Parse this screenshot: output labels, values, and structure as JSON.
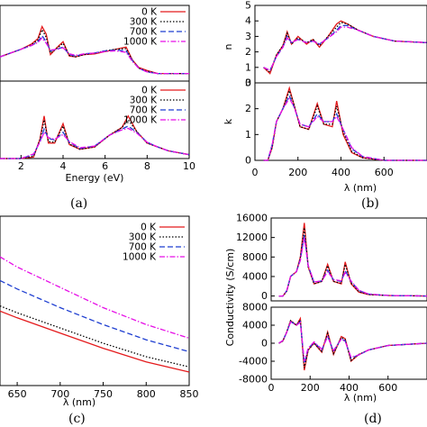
{
  "colors": {
    "0 K": "#e41a1c",
    "300 K": "#000000",
    "700 K": "#1f3fd1",
    "1000 K": "#e60fe6"
  },
  "chart_data": [
    {
      "id": "a",
      "type": "line",
      "panel_label": "(a)",
      "xlabel": "Energy (eV)",
      "xlim": [
        1,
        10
      ],
      "x_ticks": [
        "2",
        "4",
        "6",
        "8",
        "10"
      ],
      "subplots": [
        {
          "ylabel": "",
          "ylim": [
            0,
            1
          ],
          "legend": [
            "0 K",
            "300 K",
            "700 K",
            "1000 K"
          ],
          "x": [
            1.0,
            1.5,
            2.0,
            2.5,
            2.8,
            3.0,
            3.2,
            3.4,
            3.7,
            4.0,
            4.3,
            4.6,
            5.0,
            5.5,
            6.0,
            6.5,
            7.0,
            7.3,
            7.6,
            8.0,
            8.5,
            9.0,
            10.0
          ],
          "series": [
            {
              "name": "0 K",
              "values": [
                0.32,
                0.37,
                0.42,
                0.49,
                0.56,
                0.72,
                0.62,
                0.35,
                0.44,
                0.52,
                0.33,
                0.32,
                0.35,
                0.36,
                0.39,
                0.42,
                0.45,
                0.28,
                0.18,
                0.14,
                0.1,
                0.1,
                0.1
              ]
            },
            {
              "name": "300 K",
              "values": [
                0.32,
                0.37,
                0.42,
                0.48,
                0.54,
                0.68,
                0.58,
                0.37,
                0.43,
                0.5,
                0.34,
                0.32,
                0.35,
                0.37,
                0.4,
                0.42,
                0.43,
                0.27,
                0.17,
                0.13,
                0.1,
                0.1,
                0.1
              ]
            },
            {
              "name": "700 K",
              "values": [
                0.32,
                0.37,
                0.42,
                0.47,
                0.52,
                0.6,
                0.52,
                0.4,
                0.42,
                0.45,
                0.35,
                0.33,
                0.36,
                0.37,
                0.4,
                0.41,
                0.4,
                0.27,
                0.17,
                0.12,
                0.1,
                0.1,
                0.1
              ]
            },
            {
              "name": "1000 K",
              "values": [
                0.32,
                0.37,
                0.42,
                0.47,
                0.51,
                0.57,
                0.5,
                0.41,
                0.42,
                0.44,
                0.36,
                0.34,
                0.36,
                0.37,
                0.39,
                0.4,
                0.38,
                0.26,
                0.17,
                0.12,
                0.1,
                0.1,
                0.1
              ]
            }
          ]
        },
        {
          "ylabel": "",
          "ylim": [
            0,
            1
          ],
          "legend": [
            "0 K",
            "300 K",
            "700 K",
            "1000 K"
          ],
          "x": [
            1.0,
            2.0,
            2.6,
            2.9,
            3.1,
            3.3,
            3.6,
            4.0,
            4.3,
            4.8,
            5.5,
            6.2,
            6.8,
            7.1,
            7.5,
            8.0,
            8.5,
            9.0,
            10.0
          ],
          "series": [
            {
              "name": "0 K",
              "values": [
                0.0,
                0.0,
                0.02,
                0.25,
                0.55,
                0.2,
                0.2,
                0.45,
                0.18,
                0.12,
                0.15,
                0.3,
                0.4,
                0.55,
                0.35,
                0.2,
                0.15,
                0.1,
                0.05
              ]
            },
            {
              "name": "300 K",
              "values": [
                0.0,
                0.0,
                0.03,
                0.24,
                0.5,
                0.22,
                0.21,
                0.42,
                0.19,
                0.12,
                0.15,
                0.3,
                0.4,
                0.5,
                0.35,
                0.2,
                0.15,
                0.1,
                0.05
              ]
            },
            {
              "name": "700 K",
              "values": [
                0.0,
                0.0,
                0.05,
                0.22,
                0.38,
                0.26,
                0.24,
                0.34,
                0.21,
                0.13,
                0.16,
                0.3,
                0.38,
                0.42,
                0.34,
                0.21,
                0.15,
                0.1,
                0.05
              ]
            },
            {
              "name": "1000 K",
              "values": [
                0.0,
                0.0,
                0.06,
                0.21,
                0.34,
                0.27,
                0.25,
                0.31,
                0.22,
                0.14,
                0.16,
                0.3,
                0.37,
                0.39,
                0.33,
                0.21,
                0.15,
                0.1,
                0.05
              ]
            }
          ]
        }
      ]
    },
    {
      "id": "b",
      "type": "line",
      "panel_label": "(b)",
      "xlabel": "λ (nm)",
      "xlim": [
        0,
        800
      ],
      "x_ticks": [
        "0",
        "200",
        "400",
        "600"
      ],
      "subplots": [
        {
          "ylabel": "n",
          "ylim": [
            0,
            5
          ],
          "y_ticks": [
            "0",
            "1",
            "2",
            "3",
            "4",
            "5"
          ],
          "x": [
            40,
            70,
            100,
            130,
            150,
            170,
            200,
            240,
            270,
            300,
            340,
            380,
            400,
            430,
            480,
            550,
            650,
            800
          ],
          "series": [
            {
              "name": "0 K",
              "values": [
                1.0,
                0.6,
                1.8,
                2.4,
                3.3,
                2.5,
                3.0,
                2.5,
                2.8,
                2.3,
                3.0,
                3.8,
                4.0,
                3.8,
                3.4,
                3.0,
                2.7,
                2.6
              ]
            },
            {
              "name": "300 K",
              "values": [
                1.0,
                0.7,
                1.8,
                2.4,
                3.2,
                2.5,
                2.9,
                2.6,
                2.8,
                2.4,
                3.0,
                3.6,
                3.9,
                3.8,
                3.4,
                3.0,
                2.7,
                2.6
              ]
            },
            {
              "name": "700 K",
              "values": [
                1.0,
                0.8,
                1.7,
                2.3,
                3.0,
                2.6,
                2.8,
                2.6,
                2.7,
                2.5,
                2.9,
                3.4,
                3.7,
                3.7,
                3.4,
                3.0,
                2.7,
                2.6
              ]
            },
            {
              "name": "1000 K",
              "values": [
                1.0,
                0.8,
                1.7,
                2.3,
                2.9,
                2.6,
                2.8,
                2.6,
                2.7,
                2.5,
                2.9,
                3.3,
                3.6,
                3.6,
                3.4,
                3.0,
                2.7,
                2.6
              ]
            }
          ]
        },
        {
          "ylabel": "k",
          "ylim": [
            0,
            3
          ],
          "y_ticks": [
            "0",
            "1",
            "2",
            "3"
          ],
          "x": [
            40,
            60,
            80,
            100,
            130,
            160,
            180,
            210,
            250,
            290,
            320,
            360,
            380,
            410,
            450,
            500,
            600,
            800
          ],
          "series": [
            {
              "name": "0 K",
              "values": [
                0.0,
                0.0,
                0.5,
                1.5,
                2.0,
                2.8,
                2.2,
                1.3,
                1.2,
                2.2,
                1.4,
                1.3,
                2.3,
                1.0,
                0.3,
                0.1,
                0.0,
                0.0
              ]
            },
            {
              "name": "300 K",
              "values": [
                0.0,
                0.0,
                0.5,
                1.5,
                2.0,
                2.7,
                2.2,
                1.3,
                1.2,
                2.1,
                1.4,
                1.4,
                2.1,
                1.1,
                0.35,
                0.1,
                0.0,
                0.0
              ]
            },
            {
              "name": "700 K",
              "values": [
                0.0,
                0.0,
                0.6,
                1.5,
                2.0,
                2.5,
                2.1,
                1.4,
                1.3,
                1.8,
                1.5,
                1.5,
                1.8,
                1.2,
                0.45,
                0.15,
                0.0,
                0.0
              ]
            },
            {
              "name": "1000 K",
              "values": [
                0.0,
                0.0,
                0.6,
                1.5,
                2.0,
                2.4,
                2.1,
                1.4,
                1.3,
                1.7,
                1.5,
                1.5,
                1.7,
                1.2,
                0.5,
                0.15,
                0.0,
                0.0
              ]
            }
          ]
        }
      ]
    },
    {
      "id": "c",
      "type": "line",
      "panel_label": "(c)",
      "xlabel": "λ (nm)",
      "xlim": [
        630,
        850
      ],
      "x_ticks": [
        "650",
        "700",
        "750",
        "800",
        "850"
      ],
      "legend": [
        "0 K",
        "300 K",
        "700 K",
        "1000 K"
      ],
      "ylim": [
        0,
        1
      ],
      "x": [
        630,
        650,
        700,
        750,
        800,
        850
      ],
      "series": [
        {
          "name": "0 K",
          "values": [
            0.44,
            0.4,
            0.31,
            0.22,
            0.14,
            0.08
          ]
        },
        {
          "name": "300 K",
          "values": [
            0.47,
            0.43,
            0.34,
            0.25,
            0.17,
            0.11
          ]
        },
        {
          "name": "700 K",
          "values": [
            0.62,
            0.57,
            0.46,
            0.36,
            0.27,
            0.2
          ]
        },
        {
          "name": "1000 K",
          "values": [
            0.76,
            0.7,
            0.58,
            0.46,
            0.36,
            0.28
          ]
        }
      ]
    },
    {
      "id": "d",
      "type": "line",
      "panel_label": "(d)",
      "ylabel": "Conductivity (S/cm)",
      "xlabel": "λ (nm)",
      "xlim": [
        0,
        800
      ],
      "x_ticks": [
        "0",
        "200",
        "400",
        "600"
      ],
      "subplots": [
        {
          "ylim": [
            -1000,
            16000
          ],
          "y_ticks": [
            "0",
            "4000",
            "8000",
            "12000",
            "16000"
          ],
          "x": [
            40,
            60,
            80,
            100,
            130,
            150,
            170,
            190,
            220,
            260,
            290,
            320,
            360,
            380,
            410,
            450,
            500,
            600,
            800
          ],
          "series": [
            {
              "name": "0 K",
              "values": [
                0,
                0,
                1000,
                4000,
                5000,
                8000,
                15000,
                6000,
                2500,
                3000,
                6500,
                3000,
                2500,
                7000,
                2500,
                800,
                300,
                100,
                0
              ]
            },
            {
              "name": "300 K",
              "values": [
                0,
                0,
                1000,
                4000,
                5000,
                7800,
                14000,
                6000,
                2500,
                3000,
                6200,
                3000,
                2600,
                6500,
                2700,
                900,
                300,
                100,
                0
              ]
            },
            {
              "name": "700 K",
              "values": [
                0,
                0,
                1100,
                4000,
                5000,
                7500,
                12500,
                6200,
                2800,
                3100,
                5300,
                3300,
                3000,
                5200,
                3000,
                1100,
                400,
                100,
                0
              ]
            },
            {
              "name": "1000 K",
              "values": [
                0,
                0,
                1100,
                4000,
                5000,
                7300,
                12000,
                6300,
                2900,
                3100,
                5000,
                3400,
                3100,
                4800,
                3100,
                1200,
                400,
                100,
                0
              ]
            }
          ]
        },
        {
          "ylim": [
            -8000,
            8000
          ],
          "y_ticks": [
            "-8000",
            "-4000",
            "0",
            "4000",
            "8000"
          ],
          "x": [
            40,
            60,
            80,
            100,
            130,
            150,
            170,
            190,
            220,
            260,
            290,
            320,
            360,
            380,
            410,
            450,
            500,
            600,
            800
          ],
          "series": [
            {
              "name": "0 K",
              "values": [
                0,
                500,
                2500,
                5000,
                4000,
                5500,
                -6000,
                -1500,
                0,
                -2000,
                2500,
                -2500,
                1500,
                1000,
                -4000,
                -2500,
                -1500,
                -500,
                0
              ]
            },
            {
              "name": "300 K",
              "values": [
                0,
                500,
                2500,
                5000,
                4000,
                5200,
                -5500,
                -1500,
                0,
                -1800,
                2200,
                -2300,
                1300,
                800,
                -3800,
                -2500,
                -1500,
                -500,
                0
              ]
            },
            {
              "name": "700 K",
              "values": [
                0,
                600,
                2400,
                4800,
                4000,
                4800,
                -4500,
                -1200,
                200,
                -1500,
                1600,
                -1800,
                1000,
                500,
                -3300,
                -2600,
                -1500,
                -500,
                0
              ]
            },
            {
              "name": "1000 K",
              "values": [
                0,
                600,
                2400,
                4700,
                4000,
                4600,
                -4000,
                -1100,
                300,
                -1300,
                1400,
                -1600,
                900,
                400,
                -3100,
                -2600,
                -1500,
                -500,
                0
              ]
            }
          ]
        }
      ]
    }
  ]
}
